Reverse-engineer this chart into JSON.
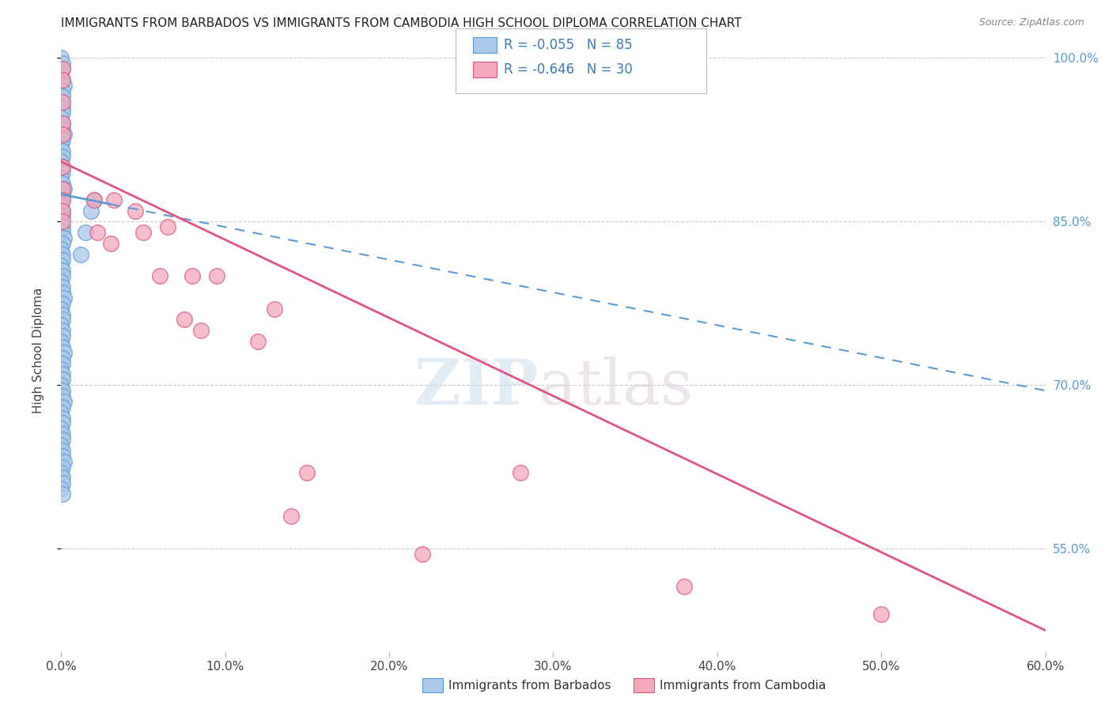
{
  "title": "IMMIGRANTS FROM BARBADOS VS IMMIGRANTS FROM CAMBODIA HIGH SCHOOL DIPLOMA CORRELATION CHART",
  "source": "Source: ZipAtlas.com",
  "ylabel": "High School Diploma",
  "legend_label1": "Immigrants from Barbados",
  "legend_label2": "Immigrants from Cambodia",
  "R1": -0.055,
  "N1": 85,
  "R2": -0.646,
  "N2": 30,
  "color1": "#aac8e8",
  "color2": "#f4a8bb",
  "line_color1": "#5b9bd5",
  "line_color2": "#e05580",
  "xmin": 0.0,
  "xmax": 0.6,
  "ymin": 0.455,
  "ymax": 1.008,
  "yticks": [
    1.0,
    0.85,
    0.7,
    0.55
  ],
  "xticks": [
    0.0,
    0.1,
    0.2,
    0.3,
    0.4,
    0.5,
    0.6
  ],
  "barbados_x": [
    0.0,
    0.001,
    0.001,
    0.0,
    0.001,
    0.002,
    0.001,
    0.001,
    0.0,
    0.001,
    0.001,
    0.0,
    0.001,
    0.001,
    0.002,
    0.001,
    0.0,
    0.001,
    0.001,
    0.0,
    0.001,
    0.001,
    0.0,
    0.001,
    0.002,
    0.001,
    0.001,
    0.0,
    0.001,
    0.001,
    0.0,
    0.001,
    0.001,
    0.002,
    0.001,
    0.0,
    0.001,
    0.001,
    0.0,
    0.001,
    0.001,
    0.0,
    0.001,
    0.001,
    0.002,
    0.001,
    0.0,
    0.001,
    0.001,
    0.0,
    0.001,
    0.001,
    0.0,
    0.001,
    0.002,
    0.001,
    0.001,
    0.0,
    0.001,
    0.001,
    0.0,
    0.001,
    0.001,
    0.002,
    0.001,
    0.0,
    0.001,
    0.001,
    0.0,
    0.001,
    0.001,
    0.0,
    0.001,
    0.001,
    0.002,
    0.001,
    0.0,
    0.001,
    0.001,
    0.0,
    0.001,
    0.02,
    0.015,
    0.012,
    0.018
  ],
  "barbados_y": [
    1.0,
    0.995,
    0.99,
    0.985,
    0.98,
    0.975,
    0.97,
    0.965,
    0.96,
    0.955,
    0.95,
    0.945,
    0.94,
    0.935,
    0.93,
    0.925,
    0.92,
    0.915,
    0.91,
    0.905,
    0.9,
    0.895,
    0.89,
    0.885,
    0.88,
    0.875,
    0.87,
    0.865,
    0.86,
    0.855,
    0.85,
    0.845,
    0.84,
    0.835,
    0.83,
    0.825,
    0.82,
    0.815,
    0.81,
    0.805,
    0.8,
    0.795,
    0.79,
    0.785,
    0.78,
    0.775,
    0.77,
    0.765,
    0.76,
    0.755,
    0.75,
    0.745,
    0.74,
    0.735,
    0.73,
    0.725,
    0.72,
    0.715,
    0.71,
    0.705,
    0.7,
    0.695,
    0.69,
    0.685,
    0.68,
    0.675,
    0.67,
    0.665,
    0.66,
    0.655,
    0.65,
    0.645,
    0.64,
    0.635,
    0.63,
    0.625,
    0.62,
    0.615,
    0.61,
    0.605,
    0.6,
    0.87,
    0.84,
    0.82,
    0.86
  ],
  "cambodia_x": [
    0.001,
    0.001,
    0.001,
    0.001,
    0.001,
    0.001,
    0.001,
    0.001,
    0.001,
    0.001,
    0.02,
    0.022,
    0.03,
    0.032,
    0.045,
    0.05,
    0.06,
    0.065,
    0.075,
    0.08,
    0.085,
    0.095,
    0.12,
    0.13,
    0.14,
    0.15,
    0.22,
    0.28,
    0.38,
    0.5
  ],
  "cambodia_y": [
    0.99,
    0.98,
    0.96,
    0.94,
    0.93,
    0.9,
    0.88,
    0.87,
    0.86,
    0.85,
    0.87,
    0.84,
    0.83,
    0.87,
    0.86,
    0.84,
    0.8,
    0.845,
    0.76,
    0.8,
    0.75,
    0.8,
    0.74,
    0.77,
    0.58,
    0.62,
    0.545,
    0.62,
    0.515,
    0.49
  ],
  "trendline1_x0": 0.0,
  "trendline1_y0": 0.875,
  "trendline1_x1": 0.6,
  "trendline1_y1": 0.695,
  "trendline2_x0": 0.0,
  "trendline2_y0": 0.905,
  "trendline2_x1": 0.6,
  "trendline2_y1": 0.475
}
